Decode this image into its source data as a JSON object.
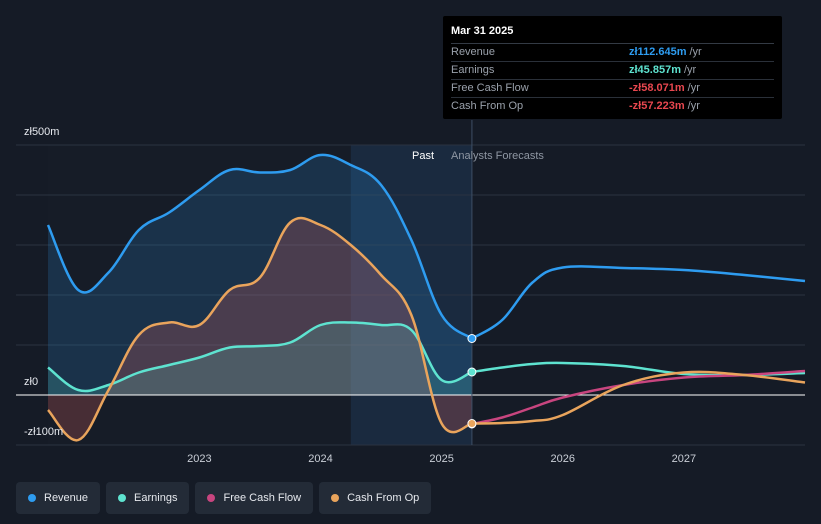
{
  "chart_data": {
    "type": "area",
    "y_unit": "zł",
    "ylim": [
      -100,
      500
    ],
    "y_ticks": [
      {
        "value": 500,
        "label": "zł500m"
      },
      {
        "value": 0,
        "label": "zł0"
      },
      {
        "value": -100,
        "label": "-zł100m"
      }
    ],
    "x_ticks": [
      {
        "value": 2023.0,
        "label": "2023"
      },
      {
        "value": 2024.0,
        "label": "2024"
      },
      {
        "value": 2025.0,
        "label": "2025"
      },
      {
        "value": 2026.0,
        "label": "2026"
      },
      {
        "value": 2027.0,
        "label": "2027"
      }
    ],
    "xlim": [
      2021.75,
      2028.0
    ],
    "divider_x": 2025.25,
    "past_label": "Past",
    "forecast_label": "Analysts Forecasts",
    "series": [
      {
        "name": "Revenue",
        "color": "#2e9cf0",
        "x": [
          2021.75,
          2022.0,
          2022.25,
          2022.5,
          2022.75,
          2023.0,
          2023.25,
          2023.5,
          2023.75,
          2024.0,
          2024.25,
          2024.5,
          2024.75,
          2025.0,
          2025.25,
          2025.5,
          2025.75,
          2026.0,
          2026.5,
          2027.0,
          2027.5,
          2028.0
        ],
        "y": [
          340,
          210,
          245,
          330,
          365,
          410,
          450,
          445,
          450,
          480,
          460,
          420,
          310,
          160,
          113,
          150,
          225,
          255,
          254,
          250,
          240,
          228
        ]
      },
      {
        "name": "Earnings",
        "color": "#5ee3d0",
        "x": [
          2021.75,
          2022.0,
          2022.25,
          2022.5,
          2022.75,
          2023.0,
          2023.25,
          2023.5,
          2023.75,
          2024.0,
          2024.25,
          2024.5,
          2024.75,
          2025.0,
          2025.25,
          2025.5,
          2025.75,
          2026.0,
          2026.5,
          2027.0,
          2027.5,
          2028.0
        ],
        "y": [
          55,
          10,
          20,
          45,
          60,
          75,
          95,
          98,
          105,
          140,
          145,
          140,
          130,
          30,
          46,
          55,
          62,
          64,
          58,
          42,
          40,
          44
        ]
      },
      {
        "name": "Free Cash Flow",
        "color": "#c8457f",
        "x": [
          2025.25,
          2025.5,
          2025.75,
          2026.0,
          2026.5,
          2027.0,
          2027.5,
          2028.0
        ],
        "y": [
          -58,
          -45,
          -25,
          -5,
          20,
          35,
          40,
          48
        ]
      },
      {
        "name": "Cash From Op",
        "color": "#e9a45c",
        "x": [
          2021.75,
          2022.0,
          2022.25,
          2022.5,
          2022.75,
          2023.0,
          2023.25,
          2023.5,
          2023.75,
          2024.0,
          2024.25,
          2024.5,
          2024.75,
          2025.0,
          2025.25,
          2025.5,
          2025.75,
          2026.0,
          2026.5,
          2027.0,
          2027.5,
          2028.0
        ],
        "y": [
          -30,
          -90,
          10,
          120,
          145,
          140,
          210,
          235,
          345,
          340,
          300,
          240,
          160,
          -57,
          -57,
          -56,
          -52,
          -40,
          20,
          45,
          40,
          25
        ]
      }
    ]
  },
  "tooltip": {
    "date": "Mar 31 2025",
    "rows": [
      {
        "label": "Revenue",
        "value": "zł112.645m",
        "unit": "/yr",
        "color": "#2e9cf0"
      },
      {
        "label": "Earnings",
        "value": "zł45.857m",
        "unit": "/yr",
        "color": "#5ee3d0"
      },
      {
        "label": "Free Cash Flow",
        "value": "-zł58.071m",
        "unit": "/yr",
        "color": "#e8474f"
      },
      {
        "label": "Cash From Op",
        "value": "-zł57.223m",
        "unit": "/yr",
        "color": "#e8474f"
      }
    ]
  },
  "legend": [
    {
      "label": "Revenue",
      "color": "#2e9cf0"
    },
    {
      "label": "Earnings",
      "color": "#5ee3d0"
    },
    {
      "label": "Free Cash Flow",
      "color": "#c8457f"
    },
    {
      "label": "Cash From Op",
      "color": "#e9a45c"
    }
  ]
}
